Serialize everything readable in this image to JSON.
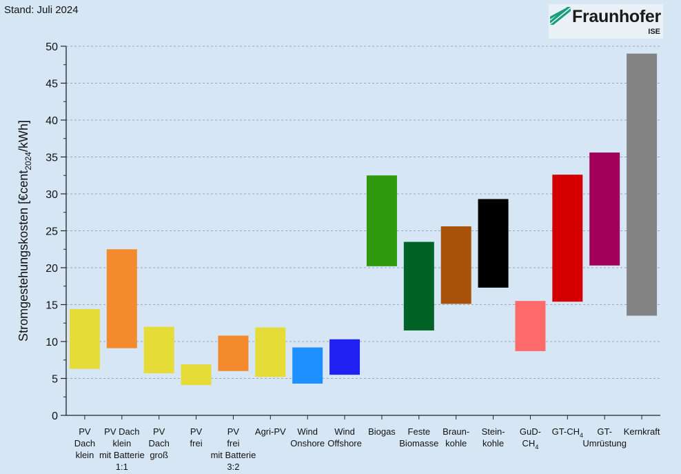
{
  "header": {
    "stand": "Stand: Juli 2024"
  },
  "logo": {
    "name": "Fraunhofer",
    "sub": "ISE",
    "color": "#179c7d"
  },
  "chart_data": {
    "type": "bar",
    "ylabel": "Stromgestehungskosten [€cent2024/kWh]",
    "ylim": [
      0,
      50
    ],
    "yticks": [
      0,
      5,
      10,
      15,
      20,
      25,
      30,
      35,
      40,
      45,
      50
    ],
    "grid": "horizontal-dashed",
    "categories": [
      {
        "label": [
          "PV",
          "Dach",
          "klein"
        ],
        "low": 6.3,
        "high": 14.4,
        "color": "#e6dc37"
      },
      {
        "label": [
          "PV Dach",
          "klein",
          "mit Batterie",
          "1:1"
        ],
        "low": 9.1,
        "high": 22.5,
        "color": "#f48a2e"
      },
      {
        "label": [
          "PV",
          "Dach",
          "groß"
        ],
        "low": 5.7,
        "high": 12.0,
        "color": "#e6dc37"
      },
      {
        "label": [
          "PV",
          "frei"
        ],
        "low": 4.1,
        "high": 6.9,
        "color": "#e6dc37"
      },
      {
        "label": [
          "PV",
          "frei",
          "mit Batterie",
          "3:2"
        ],
        "low": 6.0,
        "high": 10.8,
        "color": "#f48a2e"
      },
      {
        "label": [
          "Agri-PV"
        ],
        "low": 5.2,
        "high": 11.9,
        "color": "#e6dc37"
      },
      {
        "label": [
          "Wind",
          "Onshore"
        ],
        "low": 4.3,
        "high": 9.2,
        "color": "#1e90ff"
      },
      {
        "label": [
          "Wind",
          "Offshore"
        ],
        "low": 5.5,
        "high": 10.3,
        "color": "#2020f0"
      },
      {
        "label": [
          "Biogas"
        ],
        "low": 20.2,
        "high": 32.5,
        "color": "#2e9a0c"
      },
      {
        "label": [
          "Feste",
          "Biomasse"
        ],
        "low": 11.5,
        "high": 23.5,
        "color": "#006325"
      },
      {
        "label": [
          "Braun-",
          "kohle"
        ],
        "low": 15.1,
        "high": 25.6,
        "color": "#a8510a"
      },
      {
        "label": [
          "Stein-",
          "kohle"
        ],
        "low": 17.3,
        "high": 29.3,
        "color": "#000000"
      },
      {
        "label": [
          "GuD-",
          "CH4"
        ],
        "low": 8.7,
        "high": 15.5,
        "color": "#ff6b6b"
      },
      {
        "label": [
          "GT-CH4"
        ],
        "low": 15.4,
        "high": 32.6,
        "color": "#d40000"
      },
      {
        "label": [
          "GT-",
          "Umrüstung"
        ],
        "low": 20.3,
        "high": 35.6,
        "color": "#a0005a"
      },
      {
        "label": [
          "Kernkraft"
        ],
        "low": 13.5,
        "high": 49.0,
        "color": "#848484"
      }
    ]
  }
}
